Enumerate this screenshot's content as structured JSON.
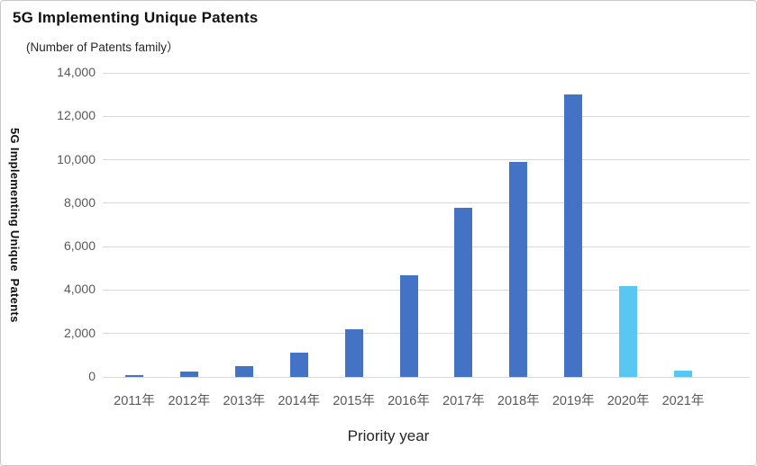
{
  "page": {
    "background": "#ffffff",
    "border_color": "#c9c9c9"
  },
  "chart_data": {
    "type": "bar",
    "title": "5G Implementing Unique Patents",
    "subtitle": "(Number of Patents family）",
    "xlabel": "Priority year",
    "ylabel": "5G Implementing Unique  Patents",
    "categories": [
      "2011年",
      "2012年",
      "2013年",
      "2014年",
      "2015年",
      "2016年",
      "2017年",
      "2018年",
      "2019年",
      "2020年",
      "2021年"
    ],
    "values": [
      100,
      250,
      500,
      1100,
      2200,
      4700,
      7800,
      9900,
      13000,
      4200,
      300
    ],
    "bar_colors": [
      "#4472C4",
      "#4472C4",
      "#4472C4",
      "#4472C4",
      "#4472C4",
      "#4472C4",
      "#4472C4",
      "#4472C4",
      "#4472C4",
      "#58C7F2",
      "#58C7F2"
    ],
    "color_legend": {
      "main_bar_color": "#4472C4",
      "recent_years_bar_color": "#58C7F2"
    },
    "ylim": [
      0,
      14000
    ],
    "yticks": [
      0,
      2000,
      4000,
      6000,
      8000,
      10000,
      12000,
      14000
    ],
    "ytick_labels": [
      "0",
      "2,000",
      "4,000",
      "6,000",
      "8,000",
      "10,000",
      "12,000",
      "14,000"
    ],
    "grid": true,
    "gridline_color": "#d9d9d9",
    "tick_label_color": "#595959",
    "legend": "none"
  }
}
